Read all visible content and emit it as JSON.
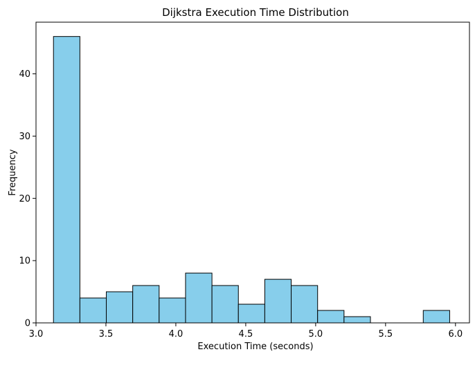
{
  "chart_data": {
    "type": "bar",
    "title": "Dijkstra Execution Time Distribution",
    "xlabel": "Execution Time (seconds)",
    "ylabel": "Frequency",
    "bin_edges": [
      3.125,
      3.3139,
      3.5028,
      3.6917,
      3.8806,
      4.0695,
      4.2584,
      4.4473,
      4.6362,
      4.8251,
      5.014,
      5.2029,
      5.3918,
      5.5807,
      5.7696,
      5.9585
    ],
    "values": [
      46,
      4,
      5,
      6,
      4,
      8,
      6,
      3,
      7,
      6,
      2,
      1,
      0,
      0,
      2
    ],
    "xlim": [
      3.0,
      6.1
    ],
    "ylim": [
      0,
      48.3
    ],
    "xticks": [
      3.0,
      3.5,
      4.0,
      4.5,
      5.0,
      5.5,
      6.0
    ],
    "xtick_labels": [
      "3.0",
      "3.5",
      "4.0",
      "4.5",
      "5.0",
      "5.5",
      "6.0"
    ],
    "yticks": [
      0,
      10,
      20,
      30,
      40
    ],
    "ytick_labels": [
      "0",
      "10",
      "20",
      "30",
      "40"
    ],
    "grid": false,
    "colors": {
      "bar_fill": "#87ceeb",
      "bar_edge": "#000000",
      "axis": "#000000"
    }
  }
}
